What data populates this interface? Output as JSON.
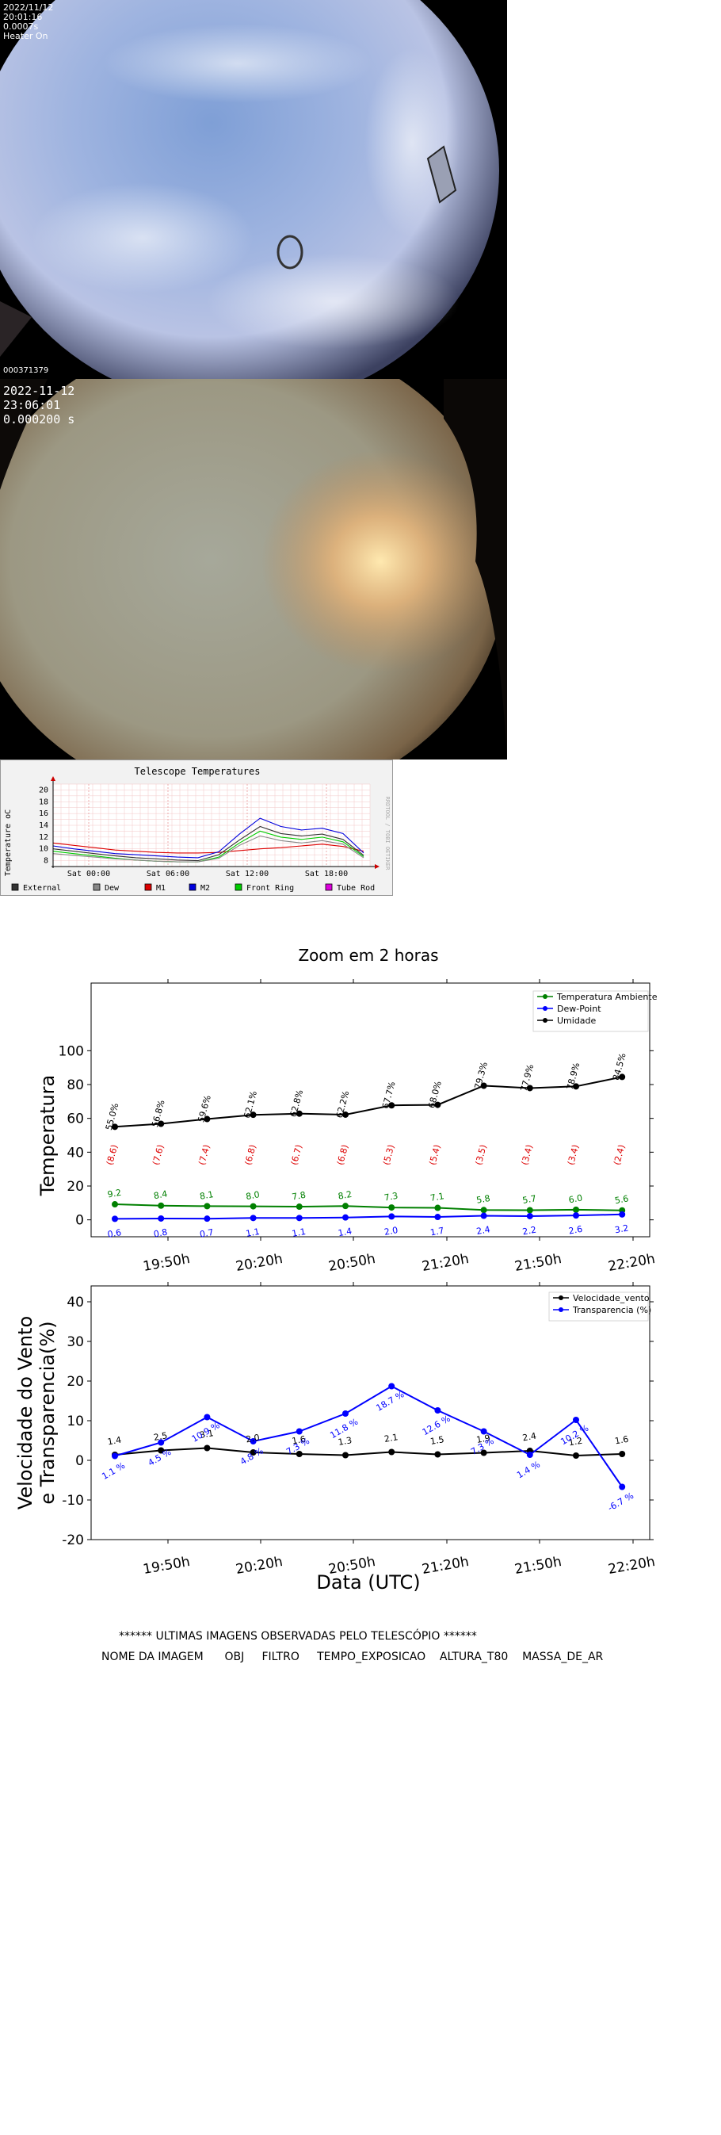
{
  "camera1": {
    "date": "2022/11/12",
    "time": "20:01:16",
    "exposure": "0.0007s",
    "heater": "Heater On",
    "frame_id": "000371379"
  },
  "camera2": {
    "date": "2022-11-12",
    "time": "23:06:01",
    "exposure": "0.000200 s"
  },
  "telescope_chart": {
    "type": "line",
    "title": "Telescope Temperatures",
    "ylabel": "Temperature oC",
    "side_label": "RRDTOOL / TOBI OETIKER",
    "categories": [
      "Sat 00:00",
      "Sat 06:00",
      "Sat 12:00",
      "Sat 18:00"
    ],
    "yticks": [
      8,
      10,
      12,
      14,
      16,
      18,
      20
    ],
    "ylim": [
      7,
      21
    ],
    "legend": [
      {
        "name": "External",
        "color": "#333333"
      },
      {
        "name": "Dew",
        "color": "#888888"
      },
      {
        "name": "M1",
        "color": "#dd0000"
      },
      {
        "name": "M2",
        "color": "#0000dd"
      },
      {
        "name": "Front Ring",
        "color": "#00cc00"
      },
      {
        "name": "Tube Rod",
        "color": "#dd00dd"
      }
    ],
    "series": [
      {
        "name": "M1",
        "color": "#dd0000",
        "values": [
          11,
          10.6,
          10.2,
          9.8,
          9.6,
          9.4,
          9.3,
          9.3,
          9.4,
          9.7,
          10.0,
          10.2,
          10.5,
          10.8,
          10.4,
          9.6
        ]
      },
      {
        "name": "M2",
        "color": "#0000dd",
        "values": [
          10.5,
          10,
          9.6,
          9.2,
          9.0,
          8.8,
          8.6,
          8.5,
          9.5,
          12.5,
          15.2,
          13.8,
          13.2,
          13.5,
          12.6,
          9.3
        ]
      },
      {
        "name": "External",
        "color": "#333333",
        "values": [
          10,
          9.6,
          9.2,
          8.8,
          8.5,
          8.3,
          8.1,
          8.0,
          9.0,
          11.5,
          13.8,
          12.6,
          12.2,
          12.5,
          11.6,
          8.9
        ]
      },
      {
        "name": "Front Ring",
        "color": "#00cc00",
        "values": [
          9.6,
          9.2,
          8.8,
          8.4,
          8.1,
          7.9,
          7.8,
          7.8,
          8.6,
          11.0,
          13.0,
          12.0,
          11.6,
          12.0,
          11.2,
          8.7
        ]
      },
      {
        "name": "Dew",
        "color": "#888888",
        "values": [
          9.2,
          8.9,
          8.6,
          8.3,
          8.1,
          7.9,
          7.8,
          7.8,
          8.4,
          10.6,
          12.2,
          11.4,
          11.0,
          11.4,
          10.8,
          8.5
        ]
      }
    ]
  },
  "zoom_chart": {
    "title": "Zoom em 2 horas",
    "xlabel": "Data (UTC)",
    "x_ticks": [
      "19:50h",
      "20:20h",
      "20:50h",
      "21:20h",
      "21:50h",
      "22:20h"
    ],
    "temp_panel": {
      "ylabel": "Temperatura",
      "yticks": [
        0,
        20,
        40,
        60,
        80,
        100
      ],
      "ylim": [
        -10,
        140
      ],
      "legend": [
        {
          "name": "Temperatura Ambiente",
          "color": "#008000"
        },
        {
          "name": "Dew-Point",
          "color": "#0000ff"
        },
        {
          "name": "Umidade",
          "color": "#000000"
        }
      ],
      "humidity": [
        55.0,
        56.8,
        59.6,
        62.1,
        62.8,
        62.2,
        67.7,
        68.0,
        79.3,
        77.9,
        78.9,
        84.5
      ],
      "humidity_labels": [
        "55.0%",
        "56.8%",
        "59.6%",
        "62.1%",
        "62.8%",
        "62.2%",
        "67.7%",
        "68.0%",
        "79.3%",
        "77.9%",
        "78.9%",
        "84.5%"
      ],
      "diff_labels": [
        "(8.6)",
        "(7.6)",
        "(7.4)",
        "(6.8)",
        "(6.7)",
        "(6.8)",
        "(5.3)",
        "(5.4)",
        "(3.5)",
        "(3.4)",
        "(3.4)",
        "(2.4)"
      ],
      "temperature": [
        9.2,
        8.4,
        8.1,
        8.0,
        7.8,
        8.2,
        7.3,
        7.1,
        5.8,
        5.7,
        6.0,
        5.6
      ],
      "temperature_labels": [
        "9.2",
        "8.4",
        "8.1",
        "8.0",
        "7.8",
        "8.2",
        "7.3",
        "7.1",
        "5.8",
        "5.7",
        "6.0",
        "5.6"
      ],
      "dewpoint": [
        0.6,
        0.8,
        0.7,
        1.1,
        1.1,
        1.4,
        2.0,
        1.7,
        2.4,
        2.2,
        2.6,
        3.2
      ],
      "dewpoint_labels": [
        "0.6",
        "0.8",
        "0.7",
        "1.1",
        "1.1",
        "1.4",
        "2.0",
        "1.7",
        "2.4",
        "2.2",
        "2.6",
        "3.2"
      ]
    },
    "wind_panel": {
      "ylabel_line1": "Velocidade do Vento",
      "ylabel_line2": "e Transparencia(%)",
      "yticks": [
        -20,
        -10,
        0,
        10,
        20,
        30,
        40
      ],
      "ylim": [
        -20,
        44
      ],
      "legend": [
        {
          "name": "Velocidade_vento",
          "color": "#000000"
        },
        {
          "name": "Transparencia (%)",
          "color": "#0000ff"
        }
      ],
      "wind": [
        1.4,
        2.5,
        3.1,
        2.0,
        1.6,
        1.3,
        2.1,
        1.5,
        1.9,
        2.4,
        1.2,
        1.6
      ],
      "wind_labels": [
        "1.4",
        "2.5",
        "3.1",
        "2.0",
        "1.6",
        "1.3",
        "2.1",
        "1.5",
        "1.9",
        "2.4",
        "1.2",
        "1.6"
      ],
      "transparency": [
        1.1,
        4.5,
        10.9,
        4.8,
        7.3,
        11.8,
        18.7,
        12.6,
        7.3,
        1.4,
        10.2,
        -6.7
      ],
      "transparency_labels": [
        "1.1 %",
        "4.5 %",
        "10.9 %",
        "4.8 %",
        "7.3 %",
        "11.8 %",
        "18.7 %",
        "12.6 %",
        "7.3 %",
        "1.4 %",
        "10.2 %",
        "-6.7 %"
      ]
    }
  },
  "observations": {
    "title": "****** ULTIMAS IMAGENS OBSERVADAS PELO TELESCÓPIO ******",
    "columns": [
      "NOME DA IMAGEM",
      "OBJ",
      "FILTRO",
      "TEMPO_EXPOSICAO",
      "ALTURA_T80",
      "MASSA_DE_AR"
    ]
  }
}
